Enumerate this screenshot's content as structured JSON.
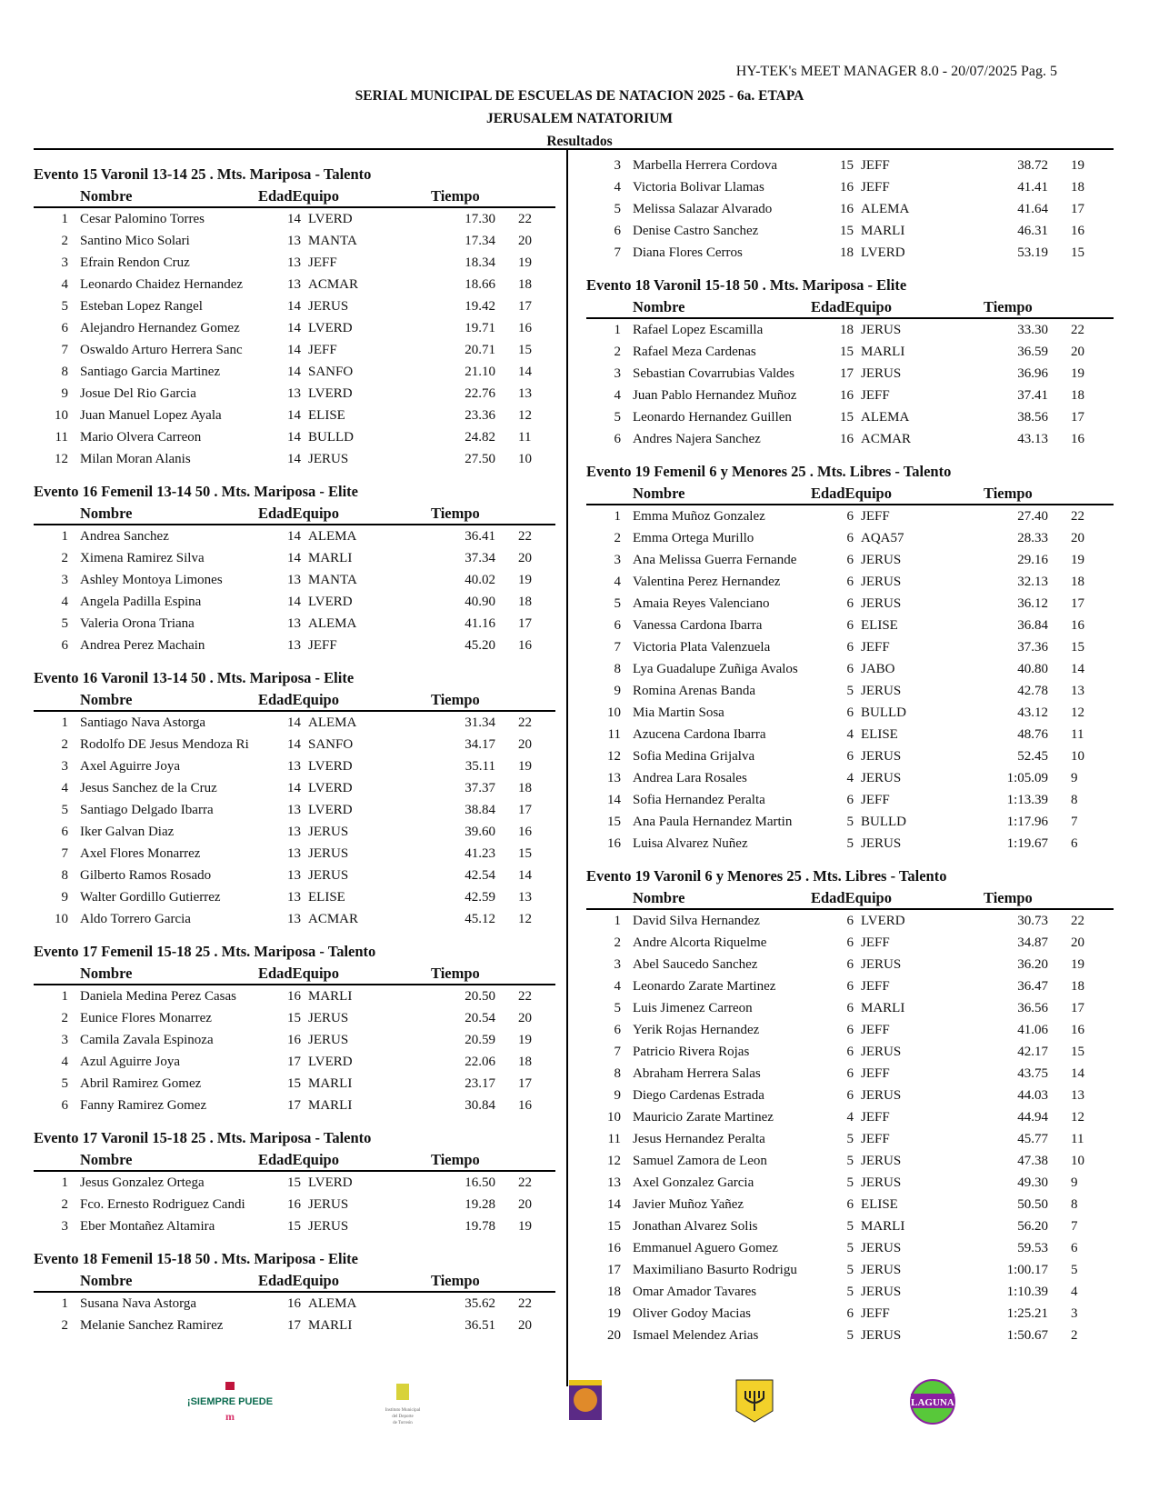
{
  "header": {
    "software": "HY-TEK's MEET MANAGER 8.0 - 20/07/2025  Pag. 5",
    "title": "SERIAL MUNICIPAL DE ESCUELAS DE NATACION 2025 - 6a. ETAPA",
    "venue": "JERUSALEM NATATORIUM",
    "subtitle": "Resultados"
  },
  "columns_header": {
    "nombre": "Nombre",
    "edad_equipo": "EdadEquipo",
    "tiempo": "Tiempo"
  },
  "left_events": [
    {
      "title": "Evento 15  Varonil 13-14 25 . Mts. Mariposa - Talento",
      "rows": [
        [
          "1",
          "Cesar Palomino Torres",
          "14",
          "LVERD",
          "17.30",
          "22"
        ],
        [
          "2",
          "Santino Mico Solari",
          "13",
          "MANTA",
          "17.34",
          "20"
        ],
        [
          "3",
          "Efrain Rendon Cruz",
          "13",
          "JEFF",
          "18.34",
          "19"
        ],
        [
          "4",
          "Leonardo Chaidez Hernandez",
          "13",
          "ACMAR",
          "18.66",
          "18"
        ],
        [
          "5",
          "Esteban Lopez Rangel",
          "14",
          "JERUS",
          "19.42",
          "17"
        ],
        [
          "6",
          "Alejandro Hernandez Gomez",
          "14",
          "LVERD",
          "19.71",
          "16"
        ],
        [
          "7",
          "Oswaldo Arturo Herrera Sanc",
          "14",
          "JEFF",
          "20.71",
          "15"
        ],
        [
          "8",
          "Santiago Garcia Martinez",
          "14",
          "SANFO",
          "21.10",
          "14"
        ],
        [
          "9",
          "Josue Del Rio Garcia",
          "13",
          "LVERD",
          "22.76",
          "13"
        ],
        [
          "10",
          "Juan Manuel Lopez Ayala",
          "14",
          "ELISE",
          "23.36",
          "12"
        ],
        [
          "11",
          "Mario Olvera Carreon",
          "14",
          "BULLD",
          "24.82",
          "11"
        ],
        [
          "12",
          "Milan Moran Alanis",
          "14",
          "JERUS",
          "27.50",
          "10"
        ]
      ]
    },
    {
      "title": "Evento 16  Femenil 13-14 50 . Mts. Mariposa - Elite",
      "rows": [
        [
          "1",
          "Andrea Sanchez",
          "14",
          "ALEMA",
          "36.41",
          "22"
        ],
        [
          "2",
          "Ximena Ramirez Silva",
          "14",
          "MARLI",
          "37.34",
          "20"
        ],
        [
          "3",
          "Ashley Montoya Limones",
          "13",
          "MANTA",
          "40.02",
          "19"
        ],
        [
          "4",
          "Angela Padilla Espina",
          "14",
          "LVERD",
          "40.90",
          "18"
        ],
        [
          "5",
          "Valeria Orona Triana",
          "13",
          "ALEMA",
          "41.16",
          "17"
        ],
        [
          "6",
          "Andrea Perez Machain",
          "13",
          "JEFF",
          "45.20",
          "16"
        ]
      ]
    },
    {
      "title": "Evento 16  Varonil 13-14 50 . Mts. Mariposa - Elite",
      "rows": [
        [
          "1",
          "Santiago Nava Astorga",
          "14",
          "ALEMA",
          "31.34",
          "22"
        ],
        [
          "2",
          "Rodolfo DE Jesus Mendoza Ri",
          "14",
          "SANFO",
          "34.17",
          "20"
        ],
        [
          "3",
          "Axel Aguirre Joya",
          "13",
          "LVERD",
          "35.11",
          "19"
        ],
        [
          "4",
          "Jesus Sanchez de la Cruz",
          "14",
          "LVERD",
          "37.37",
          "18"
        ],
        [
          "5",
          "Santiago Delgado Ibarra",
          "13",
          "LVERD",
          "38.84",
          "17"
        ],
        [
          "6",
          "Iker Galvan Diaz",
          "13",
          "JERUS",
          "39.60",
          "16"
        ],
        [
          "7",
          "Axel Flores Monarrez",
          "13",
          "JERUS",
          "41.23",
          "15"
        ],
        [
          "8",
          "Gilberto Ramos Rosado",
          "13",
          "JERUS",
          "42.54",
          "14"
        ],
        [
          "9",
          "Walter Gordillo Gutierrez",
          "13",
          "ELISE",
          "42.59",
          "13"
        ],
        [
          "10",
          "Aldo Torrero Garcia",
          "13",
          "ACMAR",
          "45.12",
          "12"
        ]
      ]
    },
    {
      "title": "Evento 17  Femenil 15-18 25 . Mts. Mariposa - Talento",
      "rows": [
        [
          "1",
          "Daniela Medina Perez Casas",
          "16",
          "MARLI",
          "20.50",
          "22"
        ],
        [
          "2",
          "Eunice Flores Monarrez",
          "15",
          "JERUS",
          "20.54",
          "20"
        ],
        [
          "3",
          "Camila Zavala Espinoza",
          "16",
          "JERUS",
          "20.59",
          "19"
        ],
        [
          "4",
          "Azul Aguirre Joya",
          "17",
          "LVERD",
          "22.06",
          "18"
        ],
        [
          "5",
          "Abril Ramirez Gomez",
          "15",
          "MARLI",
          "23.17",
          "17"
        ],
        [
          "6",
          "Fanny Ramirez Gomez",
          "17",
          "MARLI",
          "30.84",
          "16"
        ]
      ]
    },
    {
      "title": "Evento 17  Varonil 15-18 25 . Mts. Mariposa - Talento",
      "rows": [
        [
          "1",
          "Jesus Gonzalez Ortega",
          "15",
          "LVERD",
          "16.50",
          "22"
        ],
        [
          "2",
          "Fco. Ernesto Rodriguez Candi",
          "16",
          "JERUS",
          "19.28",
          "20"
        ],
        [
          "3",
          "Eber Montañez Altamira",
          "15",
          "JERUS",
          "19.78",
          "19"
        ]
      ]
    },
    {
      "title": "Evento 18  Femenil 15-18 50 . Mts. Mariposa - Elite",
      "rows": [
        [
          "1",
          "Susana Nava Astorga",
          "16",
          "ALEMA",
          "35.62",
          "22"
        ],
        [
          "2",
          "Melanie Sanchez Ramirez",
          "17",
          "MARLI",
          "36.51",
          "20"
        ]
      ]
    }
  ],
  "right_continuation": [
    [
      "3",
      "Marbella Herrera Cordova",
      "15",
      "JEFF",
      "38.72",
      "19"
    ],
    [
      "4",
      "Victoria Bolivar Llamas",
      "16",
      "JEFF",
      "41.41",
      "18"
    ],
    [
      "5",
      "Melissa Salazar Alvarado",
      "16",
      "ALEMA",
      "41.64",
      "17"
    ],
    [
      "6",
      "Denise Castro Sanchez",
      "15",
      "MARLI",
      "46.31",
      "16"
    ],
    [
      "7",
      "Diana Flores Cerros",
      "18",
      "LVERD",
      "53.19",
      "15"
    ]
  ],
  "right_events": [
    {
      "title": "Evento 18  Varonil 15-18 50 . Mts. Mariposa - Elite",
      "rows": [
        [
          "1",
          "Rafael Lopez Escamilla",
          "18",
          "JERUS",
          "33.30",
          "22"
        ],
        [
          "2",
          "Rafael Meza Cardenas",
          "15",
          "MARLI",
          "36.59",
          "20"
        ],
        [
          "3",
          "Sebastian Covarrubias Valdes",
          "17",
          "JERUS",
          "36.96",
          "19"
        ],
        [
          "4",
          "Juan Pablo Hernandez Muñoz",
          "16",
          "JEFF",
          "37.41",
          "18"
        ],
        [
          "5",
          "Leonardo Hernandez Guillen",
          "15",
          "ALEMA",
          "38.56",
          "17"
        ],
        [
          "6",
          "Andres Najera Sanchez",
          "16",
          "ACMAR",
          "43.13",
          "16"
        ]
      ]
    },
    {
      "title": "Evento 19  Femenil 6 y Menores 25 . Mts. Libres - Talento",
      "rows": [
        [
          "1",
          "Emma Muñoz Gonzalez",
          "6",
          "JEFF",
          "27.40",
          "22"
        ],
        [
          "2",
          "Emma Ortega Murillo",
          "6",
          "AQA57",
          "28.33",
          "20"
        ],
        [
          "3",
          "Ana Melissa Guerra Fernande",
          "6",
          "JERUS",
          "29.16",
          "19"
        ],
        [
          "4",
          "Valentina Perez Hernandez",
          "6",
          "JERUS",
          "32.13",
          "18"
        ],
        [
          "5",
          "Amaia Reyes Valenciano",
          "6",
          "JERUS",
          "36.12",
          "17"
        ],
        [
          "6",
          "Vanessa Cardona Ibarra",
          "6",
          "ELISE",
          "36.84",
          "16"
        ],
        [
          "7",
          "Victoria Plata Valenzuela",
          "6",
          "JEFF",
          "37.36",
          "15"
        ],
        [
          "8",
          "Lya Guadalupe Zuñiga Avalos",
          "6",
          "JABO",
          "40.80",
          "14"
        ],
        [
          "9",
          "Romina Arenas Banda",
          "5",
          "JERUS",
          "42.78",
          "13"
        ],
        [
          "10",
          "Mia Martin Sosa",
          "6",
          "BULLD",
          "43.12",
          "12"
        ],
        [
          "11",
          "Azucena Cardona Ibarra",
          "4",
          "ELISE",
          "48.76",
          "11"
        ],
        [
          "12",
          "Sofia Medina Grijalva",
          "6",
          "JERUS",
          "52.45",
          "10"
        ],
        [
          "13",
          "Andrea Lara Rosales",
          "4",
          "JERUS",
          "1:05.09",
          "9"
        ],
        [
          "14",
          "Sofia Hernandez Peralta",
          "6",
          "JEFF",
          "1:13.39",
          "8"
        ],
        [
          "15",
          "Ana Paula Hernandez Martin",
          "5",
          "BULLD",
          "1:17.96",
          "7"
        ],
        [
          "16",
          "Luisa Alvarez Nuñez",
          "5",
          "JERUS",
          "1:19.67",
          "6"
        ]
      ]
    },
    {
      "title": "Evento 19  Varonil 6 y Menores 25 . Mts. Libres - Talento",
      "rows": [
        [
          "1",
          "David Silva Hernandez",
          "6",
          "LVERD",
          "30.73",
          "22"
        ],
        [
          "2",
          "Andre Alcorta Riquelme",
          "6",
          "JEFF",
          "34.87",
          "20"
        ],
        [
          "3",
          "Abel Saucedo Sanchez",
          "6",
          "JERUS",
          "36.20",
          "19"
        ],
        [
          "4",
          "Leonardo Zarate Martinez",
          "6",
          "JEFF",
          "36.47",
          "18"
        ],
        [
          "5",
          "Luis Jimenez Carreon",
          "6",
          "MARLI",
          "36.56",
          "17"
        ],
        [
          "6",
          "Yerik Rojas Hernandez",
          "6",
          "JEFF",
          "41.06",
          "16"
        ],
        [
          "7",
          "Patricio Rivera Rojas",
          "6",
          "JERUS",
          "42.17",
          "15"
        ],
        [
          "8",
          "Abraham Herrera Salas",
          "6",
          "JEFF",
          "43.75",
          "14"
        ],
        [
          "9",
          "Diego Cardenas Estrada",
          "6",
          "JERUS",
          "44.03",
          "13"
        ],
        [
          "10",
          "Mauricio Zarate Martinez",
          "4",
          "JEFF",
          "44.94",
          "12"
        ],
        [
          "11",
          "Jesus Hernandez Peralta",
          "5",
          "JEFF",
          "45.77",
          "11"
        ],
        [
          "12",
          "Samuel Zamora de Leon",
          "5",
          "JERUS",
          "47.38",
          "10"
        ],
        [
          "13",
          "Axel Gonzalez Garcia",
          "5",
          "JERUS",
          "49.30",
          "9"
        ],
        [
          "14",
          "Javier Muñoz Yañez",
          "6",
          "ELISE",
          "50.50",
          "8"
        ],
        [
          "15",
          "Jonathan Alvarez Solis",
          "5",
          "MARLI",
          "56.20",
          "7"
        ],
        [
          "16",
          "Emmanuel Aguero Gomez",
          "5",
          "JERUS",
          "59.53",
          "6"
        ],
        [
          "17",
          "Maximiliano Basurto Rodrigu",
          "5",
          "JERUS",
          "1:00.17",
          "5"
        ],
        [
          "18",
          "Omar Amador Tavares",
          "5",
          "JERUS",
          "1:10.39",
          "4"
        ],
        [
          "19",
          "Oliver Godoy Macias",
          "6",
          "JEFF",
          "1:25.21",
          "3"
        ],
        [
          "20",
          "Ismael Melendez Arias",
          "5",
          "JERUS",
          "1:50.67",
          "2"
        ]
      ]
    }
  ],
  "logos": [
    {
      "name": "siempre-puede-logo",
      "text": "¡SIEMPRE PUEDE"
    },
    {
      "name": "instituto-municipal-deporte-logo",
      "text": "Instituto Municipal del Deporte de Torreón"
    },
    {
      "name": "tigers-logo",
      "text": ""
    },
    {
      "name": "jerusalem-menorah-logo",
      "text": ""
    },
    {
      "name": "laguna-logo",
      "text": "LAGUNA"
    }
  ]
}
